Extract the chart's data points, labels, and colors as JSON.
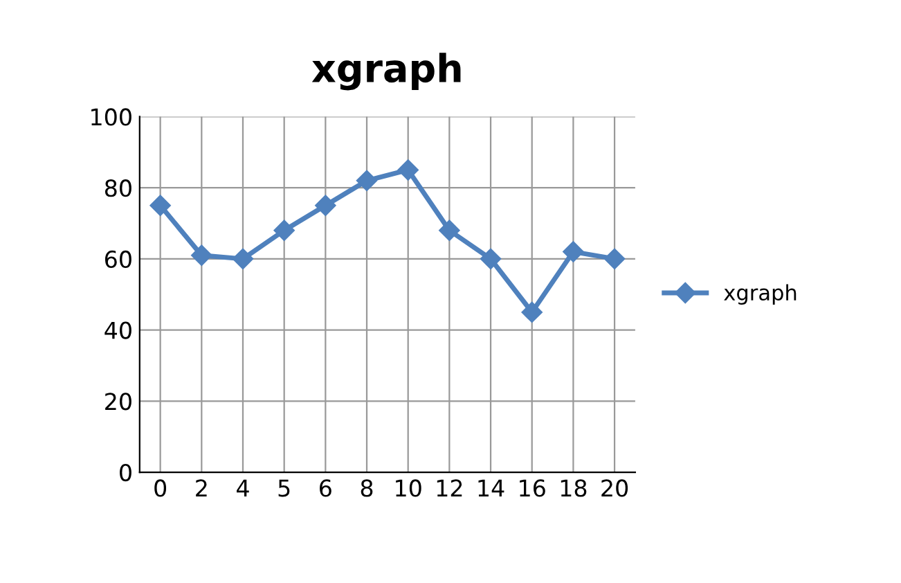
{
  "chart_data": {
    "type": "line",
    "title": "xgraph",
    "categories": [
      "0",
      "2",
      "4",
      "5",
      "6",
      "8",
      "10",
      "12",
      "14",
      "16",
      "18",
      "20"
    ],
    "series": [
      {
        "name": "xgraph",
        "color": "#4f81bd",
        "values": [
          75,
          61,
          60,
          68,
          75,
          82,
          85,
          68,
          60,
          45,
          62,
          60
        ]
      }
    ],
    "ylim": [
      0,
      100
    ],
    "yticks": [
      0,
      20,
      40,
      60,
      80,
      100
    ],
    "grid": true,
    "legend": "right",
    "marker": "diamond",
    "line_style": "solid"
  }
}
